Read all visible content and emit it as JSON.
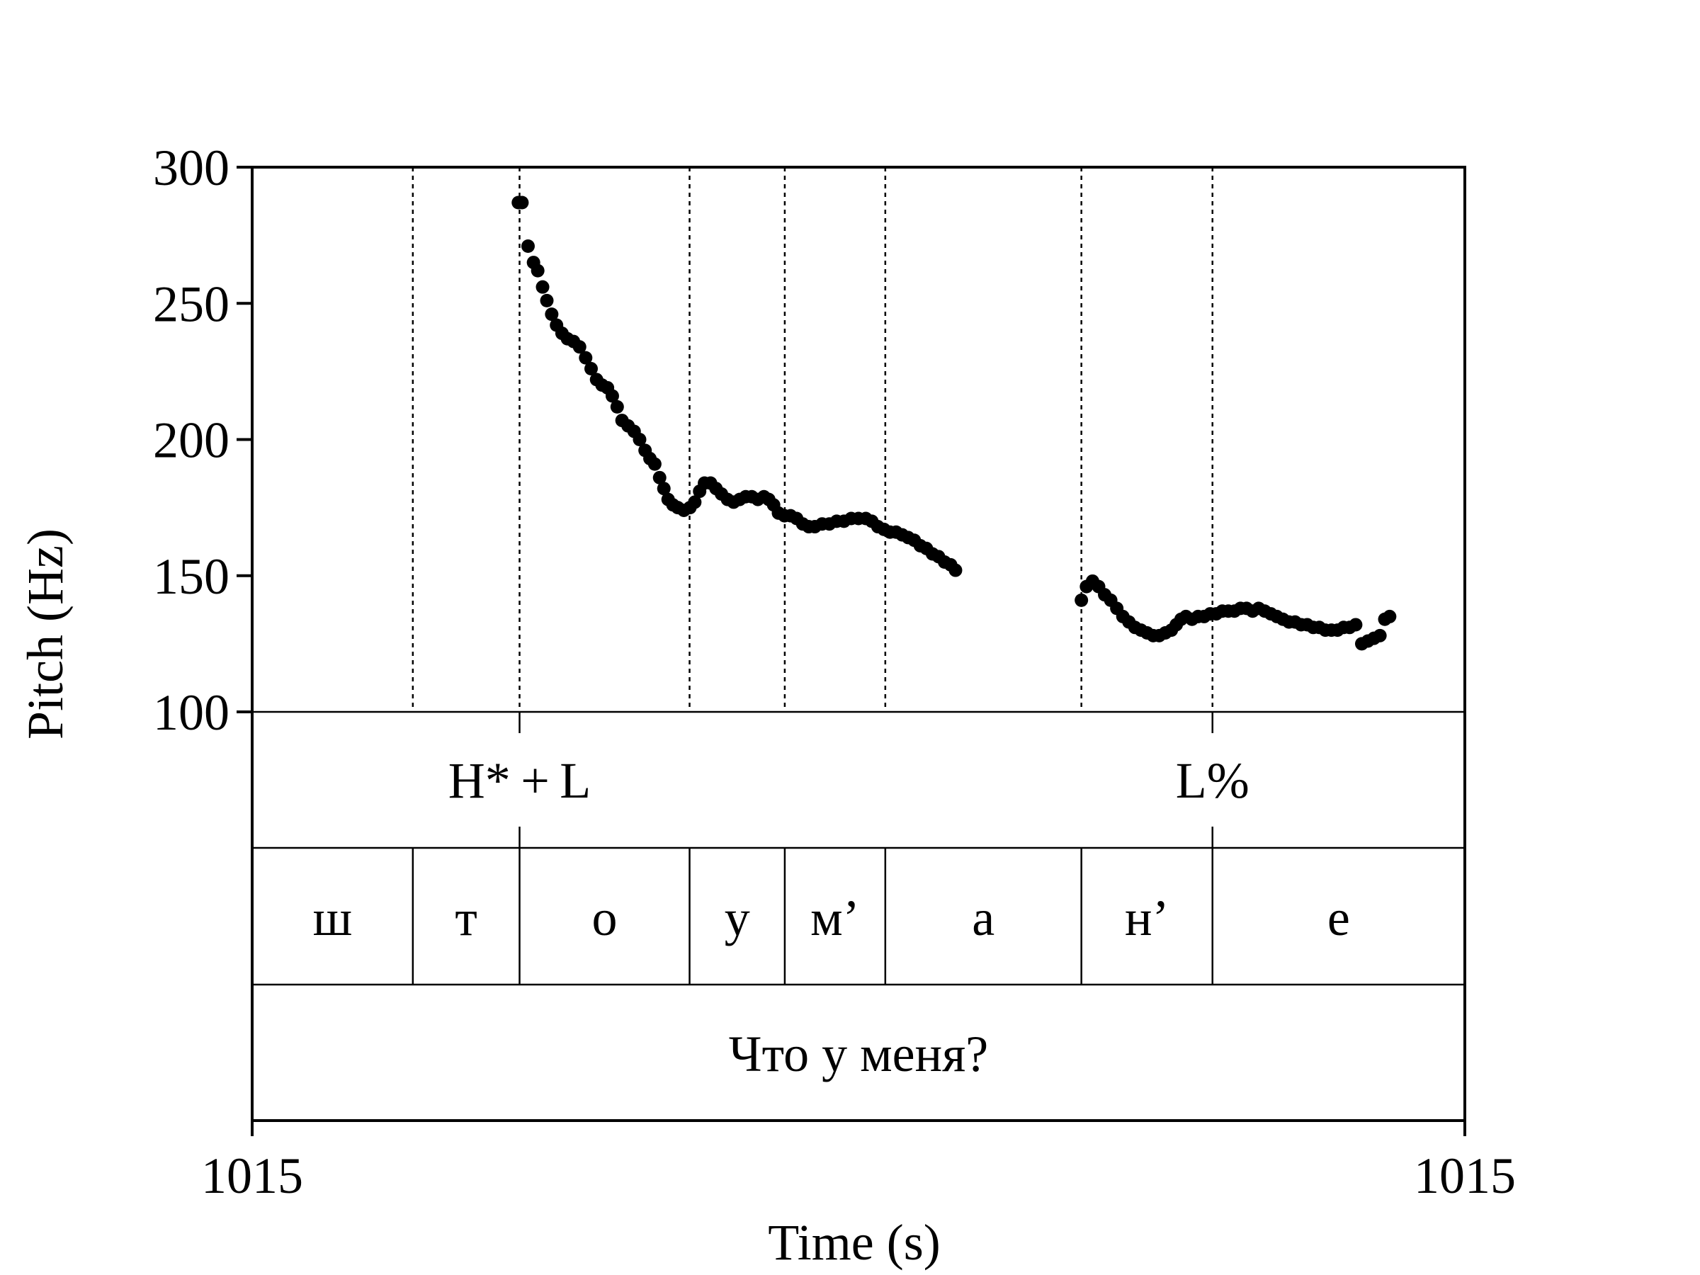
{
  "chart_data": {
    "type": "scatter",
    "ylabel": "Pitch (Hz)",
    "xlabel": "Time (s)",
    "ylim": [
      100,
      300
    ],
    "yticks": [
      "100",
      "150",
      "200",
      "250",
      "300"
    ],
    "xtick_labels": [
      "1015",
      "1015"
    ],
    "xlim": [
      0,
      1
    ],
    "grid": false,
    "series": [
      {
        "points": [
          [
            0.2195,
            287
          ],
          [
            0.2225,
            287
          ],
          [
            0.2275,
            271
          ],
          [
            0.232,
            265
          ],
          [
            0.2355,
            262
          ],
          [
            0.2395,
            256
          ],
          [
            0.243,
            251
          ],
          [
            0.247,
            246
          ],
          [
            0.251,
            242
          ],
          [
            0.2555,
            239
          ],
          [
            0.26,
            237
          ],
          [
            0.265,
            236
          ],
          [
            0.27,
            234
          ],
          [
            0.275,
            230
          ],
          [
            0.2795,
            226
          ],
          [
            0.284,
            222
          ],
          [
            0.2885,
            220
          ],
          [
            0.293,
            219
          ],
          [
            0.297,
            216
          ],
          [
            0.301,
            212
          ],
          [
            0.305,
            207
          ],
          [
            0.31,
            205
          ],
          [
            0.315,
            203
          ],
          [
            0.3195,
            200
          ],
          [
            0.324,
            196
          ],
          [
            0.328,
            193
          ],
          [
            0.332,
            191
          ],
          [
            0.336,
            186
          ],
          [
            0.3395,
            182
          ],
          [
            0.343,
            178
          ],
          [
            0.347,
            176
          ],
          [
            0.351,
            175
          ],
          [
            0.356,
            174
          ],
          [
            0.361,
            175
          ],
          [
            0.365,
            177
          ],
          [
            0.369,
            181
          ],
          [
            0.373,
            184
          ],
          [
            0.378,
            184
          ],
          [
            0.3825,
            182
          ],
          [
            0.387,
            180
          ],
          [
            0.392,
            178
          ],
          [
            0.397,
            177
          ],
          [
            0.402,
            178
          ],
          [
            0.407,
            179
          ],
          [
            0.412,
            179
          ],
          [
            0.417,
            178
          ],
          [
            0.422,
            179
          ],
          [
            0.426,
            178
          ],
          [
            0.43,
            176
          ],
          [
            0.434,
            173
          ],
          [
            0.439,
            172
          ],
          [
            0.444,
            172
          ],
          [
            0.449,
            171
          ],
          [
            0.454,
            169
          ],
          [
            0.459,
            168
          ],
          [
            0.464,
            168
          ],
          [
            0.47,
            169
          ],
          [
            0.476,
            169
          ],
          [
            0.482,
            170
          ],
          [
            0.488,
            170
          ],
          [
            0.494,
            171
          ],
          [
            0.5,
            171
          ],
          [
            0.506,
            171
          ],
          [
            0.511,
            170
          ],
          [
            0.516,
            168
          ],
          [
            0.521,
            167
          ],
          [
            0.526,
            166
          ],
          [
            0.531,
            166
          ],
          [
            0.536,
            165
          ],
          [
            0.541,
            164
          ],
          [
            0.546,
            163
          ],
          [
            0.551,
            161
          ],
          [
            0.556,
            160
          ],
          [
            0.561,
            158
          ],
          [
            0.566,
            157
          ],
          [
            0.571,
            155
          ],
          [
            0.576,
            154
          ],
          [
            0.58,
            152
          ],
          [
            0.6838,
            141
          ],
          [
            0.688,
            146
          ],
          [
            0.693,
            148
          ],
          [
            0.698,
            146
          ],
          [
            0.703,
            143
          ],
          [
            0.708,
            141
          ],
          [
            0.713,
            138
          ],
          [
            0.718,
            135
          ],
          [
            0.723,
            133
          ],
          [
            0.728,
            131
          ],
          [
            0.733,
            130
          ],
          [
            0.738,
            129
          ],
          [
            0.743,
            128
          ],
          [
            0.748,
            128
          ],
          [
            0.753,
            129
          ],
          [
            0.758,
            130
          ],
          [
            0.762,
            132
          ],
          [
            0.766,
            134
          ],
          [
            0.77,
            135
          ],
          [
            0.775,
            134
          ],
          [
            0.78,
            135
          ],
          [
            0.785,
            135
          ],
          [
            0.79,
            136
          ],
          [
            0.795,
            136
          ],
          [
            0.8,
            137
          ],
          [
            0.805,
            137
          ],
          [
            0.81,
            137
          ],
          [
            0.815,
            138
          ],
          [
            0.82,
            138
          ],
          [
            0.825,
            137
          ],
          [
            0.83,
            138
          ],
          [
            0.835,
            137
          ],
          [
            0.84,
            136
          ],
          [
            0.845,
            135
          ],
          [
            0.85,
            134
          ],
          [
            0.855,
            133
          ],
          [
            0.86,
            133
          ],
          [
            0.865,
            132
          ],
          [
            0.87,
            132
          ],
          [
            0.875,
            131
          ],
          [
            0.88,
            131
          ],
          [
            0.885,
            130
          ],
          [
            0.89,
            130
          ],
          [
            0.895,
            130
          ],
          [
            0.9,
            131
          ],
          [
            0.905,
            131
          ],
          [
            0.91,
            132
          ],
          [
            0.915,
            125
          ],
          [
            0.92,
            126
          ],
          [
            0.925,
            127
          ],
          [
            0.93,
            128
          ],
          [
            0.934,
            134
          ],
          [
            0.938,
            135
          ]
        ]
      }
    ],
    "boundaries": [
      0.1325,
      0.2205,
      0.3607,
      0.4392,
      0.5221,
      0.6838,
      0.7919
    ],
    "tiers": [
      {
        "name": "tones",
        "intervals": [
          {
            "label": "H* + L",
            "at": 0.2205
          },
          {
            "label": "L%",
            "at": 0.7919
          }
        ]
      },
      {
        "name": "segments",
        "intervals": [
          {
            "label": "ш",
            "start": 0.0,
            "end": 0.1325
          },
          {
            "label": "т",
            "start": 0.1325,
            "end": 0.2205
          },
          {
            "label": "о",
            "start": 0.2205,
            "end": 0.3607
          },
          {
            "label": "у",
            "start": 0.3607,
            "end": 0.4392
          },
          {
            "label": "м’",
            "start": 0.4392,
            "end": 0.5221
          },
          {
            "label": "а",
            "start": 0.5221,
            "end": 0.6838
          },
          {
            "label": "н’",
            "start": 0.6838,
            "end": 0.7919
          },
          {
            "label": "е",
            "start": 0.7919,
            "end": 1.0
          }
        ]
      },
      {
        "name": "sentence",
        "intervals": [
          {
            "label": "Что у меня?",
            "start": 0.0,
            "end": 1.0
          }
        ]
      }
    ]
  }
}
